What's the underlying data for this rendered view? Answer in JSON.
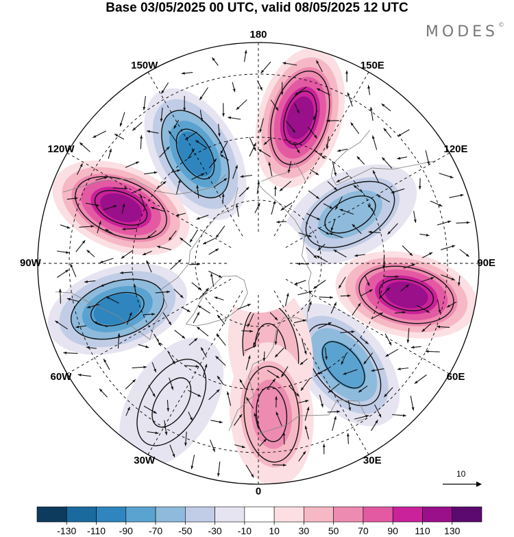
{
  "title": "Base 03/05/2025 00 UTC, valid 08/05/2025 12 UTC",
  "brand": "MODES",
  "brand_mark": "©",
  "longitude_labels": [
    {
      "id": "lon-180",
      "text": "180",
      "lon": 180
    },
    {
      "id": "lon-150e",
      "text": "150E",
      "lon": 150
    },
    {
      "id": "lon-120e",
      "text": "120E",
      "lon": 120
    },
    {
      "id": "lon-90e",
      "text": "90E",
      "lon": 90
    },
    {
      "id": "lon-60e",
      "text": "60E",
      "lon": 60
    },
    {
      "id": "lon-30e",
      "text": "30E",
      "lon": 30
    },
    {
      "id": "lon-0",
      "text": "0",
      "lon": 0
    },
    {
      "id": "lon-30w",
      "text": "30W",
      "lon": -30
    },
    {
      "id": "lon-60w",
      "text": "60W",
      "lon": -60
    },
    {
      "id": "lon-90w",
      "text": "90W",
      "lon": -90
    },
    {
      "id": "lon-120w",
      "text": "120W",
      "lon": -120
    },
    {
      "id": "lon-150w",
      "text": "150W",
      "lon": -150
    }
  ],
  "reference_vector": {
    "label": "10"
  },
  "colorbar": {
    "colors": [
      "#0d3b5e",
      "#1b6a9e",
      "#2f86bf",
      "#5aa3d0",
      "#8ebbdc",
      "#c1cde6",
      "#e6e4f0",
      "#ffffff",
      "#fbdfe3",
      "#f6b8c4",
      "#ee8bb0",
      "#e35aa3",
      "#c9229a",
      "#9a0f8a",
      "#5c0a70"
    ],
    "ticks": [
      "-130",
      "-110",
      "-90",
      "-70",
      "-50",
      "-30",
      "-10",
      "10",
      "30",
      "50",
      "70",
      "90",
      "110",
      "130"
    ]
  },
  "anomaly_centers": [
    {
      "name": "pos-150e-ridge",
      "lon": 164,
      "lat": 42,
      "value": 130
    },
    {
      "name": "neg-150w-trough",
      "lon": -150,
      "lat": 50,
      "value": -110
    },
    {
      "name": "pos-120w-ridge",
      "lon": -112,
      "lat": 43,
      "value": 130
    },
    {
      "name": "neg-75w-trough",
      "lon": -72,
      "lat": 43,
      "value": -110
    },
    {
      "name": "neg-120e-trough",
      "lon": 118,
      "lat": 57,
      "value": -70
    },
    {
      "name": "pos-90e-ridge",
      "lon": 78,
      "lat": 42,
      "value": 130
    },
    {
      "name": "neg-45e-trough",
      "lon": 40,
      "lat": 48,
      "value": -90
    },
    {
      "name": "pos-0-ridge",
      "lon": 8,
      "lat": 62,
      "value": 50
    },
    {
      "name": "pos-10e-ridge",
      "lon": 5,
      "lat": 42,
      "value": 70
    },
    {
      "name": "neg-40w-weak",
      "lon": -32,
      "lat": 38,
      "value": -30
    }
  ]
}
